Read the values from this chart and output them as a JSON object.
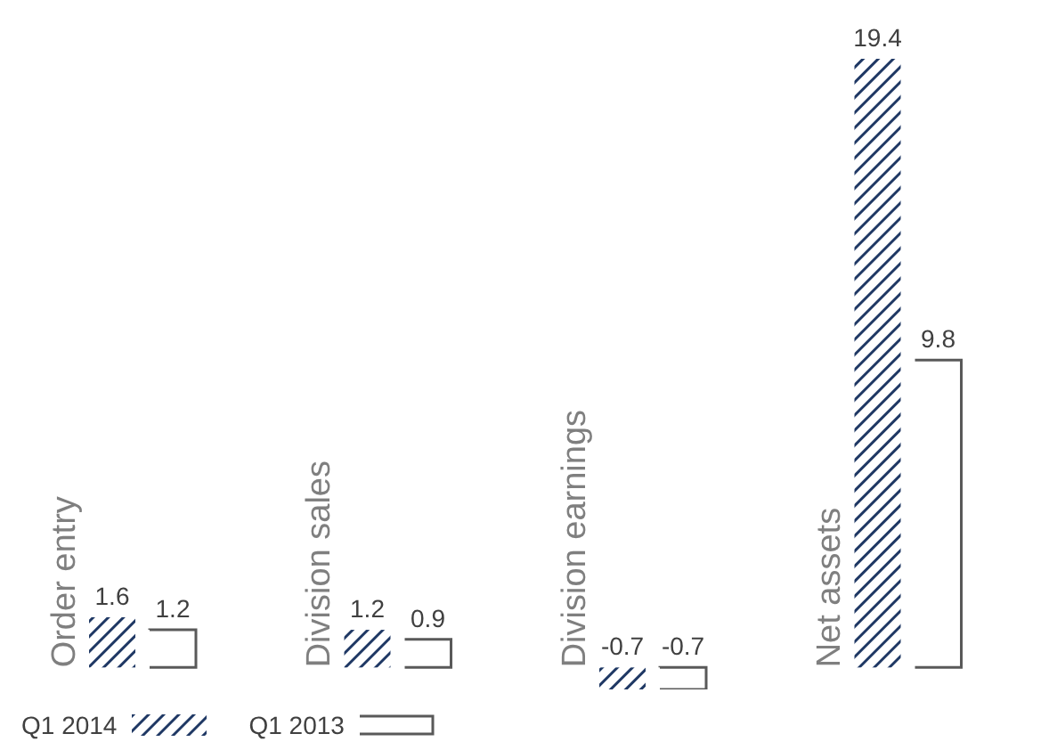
{
  "chart_data": {
    "type": "bar",
    "categories": [
      "Order entry",
      "Division sales",
      "Division earnings",
      "Net assets"
    ],
    "series": [
      {
        "name": "Q1 2014",
        "color": "#1f3864",
        "values": [
          1.6,
          1.2,
          -0.7,
          19.4
        ]
      },
      {
        "name": "Q1 2013",
        "color": "#595959",
        "values": [
          1.2,
          0.9,
          -0.7,
          9.8
        ]
      }
    ],
    "data_labels": true,
    "legend": "bottom left"
  }
}
